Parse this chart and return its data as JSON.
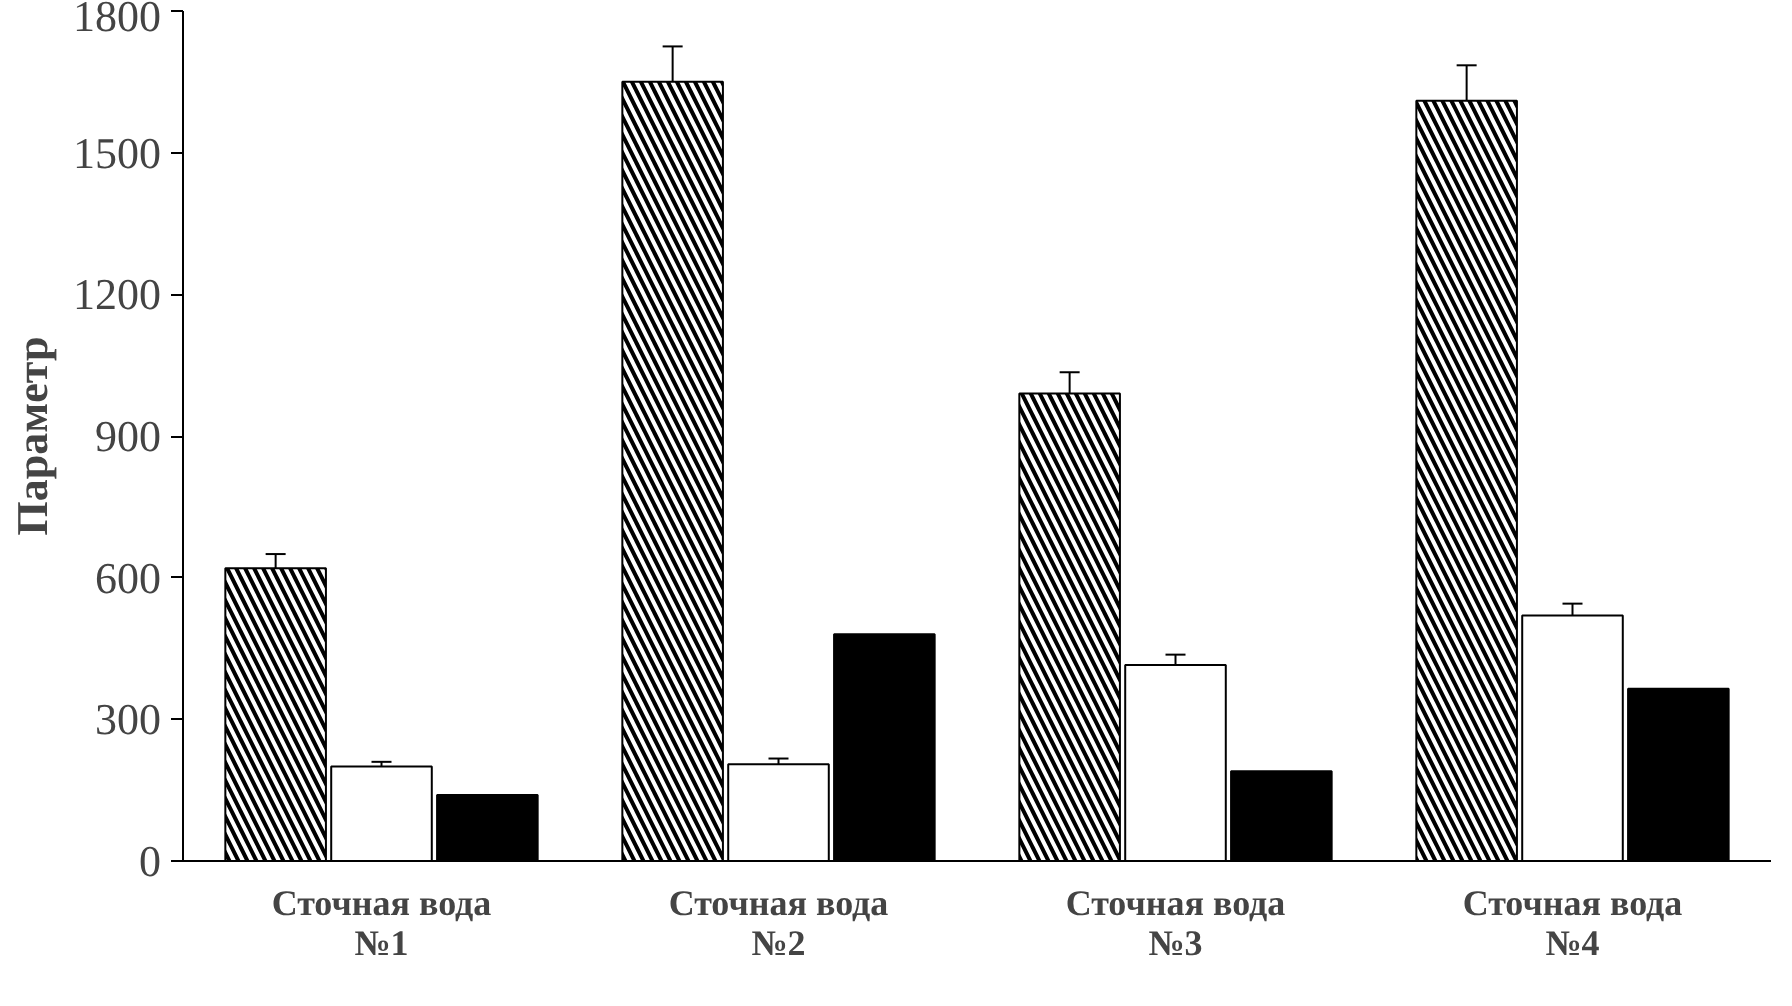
{
  "chart_data": {
    "type": "bar",
    "ylabel": "Параметр",
    "categories": [
      "Сточная вода\n№1",
      "Сточная вода\n№2",
      "Сточная вода\n№3",
      "Сточная вода\n№4"
    ],
    "series": [
      {
        "color": "#000000",
        "values": [
          620,
          1650,
          990,
          1610
        ],
        "errors": [
          30,
          75,
          45,
          75
        ]
      },
      {
        "color": "#ffffff",
        "values": [
          200,
          205,
          415,
          520
        ],
        "errors": [
          10,
          12,
          22,
          25
        ]
      },
      {
        "color": "#000000",
        "values": [
          140,
          480,
          190,
          365
        ]
      }
    ],
    "ylim": [
      0,
      1800
    ],
    "yticks": [
      0,
      300,
      600,
      900,
      1200,
      1500,
      1800
    ],
    "grid": false
  }
}
